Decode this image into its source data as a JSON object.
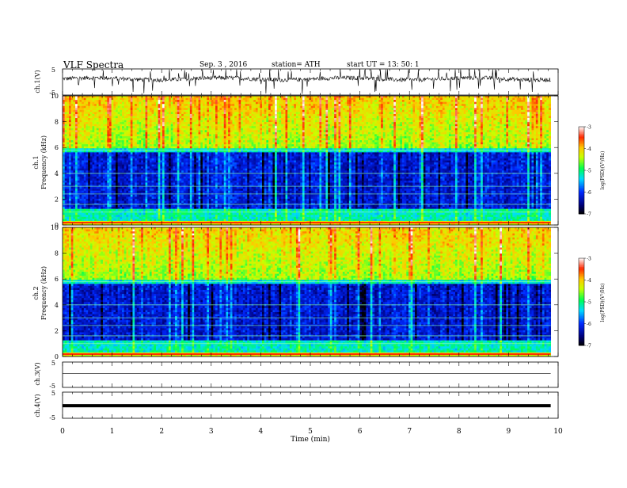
{
  "header": {
    "title": "VLF  Spectra",
    "date": "Sep. 3  , 2016",
    "station": "station= ATH",
    "start": "start  UT  =   13: 50: 1"
  },
  "chart_data": [
    {
      "type": "line",
      "panel": "ch1-waveform",
      "ylabel": "ch.1(V)",
      "ylim": [
        -5,
        5
      ],
      "yticks": [
        "5",
        "-5"
      ],
      "x_range_min": [
        0,
        9.85
      ],
      "baseline_v": 1.2
    },
    {
      "type": "heatmap",
      "panel": "ch1-spectrogram",
      "ylabel": "ch.1\nFrequency (kHz)",
      "ylabel_line1": "ch.1",
      "ylabel_line2": "Frequency  (kHz)",
      "ylim": [
        0,
        10
      ],
      "yticks": [
        "0",
        "2",
        "4",
        "6",
        "8",
        "10"
      ],
      "colorbar": {
        "label": "log(PSD)(V²/Hz)",
        "range": [
          -7,
          -3
        ],
        "ticks": [
          "-3",
          "-4",
          "-5",
          "-6",
          "-7"
        ],
        "colors": [
          "#ffffff",
          "#ff0000",
          "#ff8000",
          "#ffff00",
          "#00ff40",
          "#00ffff",
          "#0040ff",
          "#00007f",
          "#000000"
        ]
      }
    },
    {
      "type": "heatmap",
      "panel": "ch2-spectrogram",
      "ylabel_line1": "ch.2",
      "ylabel_line2": "Frequency  (kHz)",
      "ylim": [
        0,
        10
      ],
      "yticks": [
        "0",
        "2",
        "4",
        "6",
        "8",
        "10"
      ],
      "colorbar": {
        "label": "log(PSD)(V²/Hz)",
        "range": [
          -7,
          -3
        ],
        "ticks": [
          "-3",
          "-4",
          "-5",
          "-6",
          "-7"
        ]
      }
    },
    {
      "type": "line",
      "panel": "ch3-waveform",
      "ylabel": "ch.3(V)",
      "ylim": [
        -5,
        5
      ],
      "yticks": [
        "5",
        "-5"
      ],
      "baseline_v": 0
    },
    {
      "type": "line",
      "panel": "ch4-waveform",
      "ylabel": "ch.4(V)",
      "ylim": [
        -5,
        5
      ],
      "yticks": [
        "5",
        "-5"
      ],
      "baseline_v": 0
    }
  ],
  "xaxis": {
    "label": "Time  (min)",
    "range": [
      0,
      10
    ],
    "ticks": [
      "0",
      "1",
      "2",
      "3",
      "4",
      "5",
      "6",
      "7",
      "8",
      "9",
      "10"
    ]
  }
}
